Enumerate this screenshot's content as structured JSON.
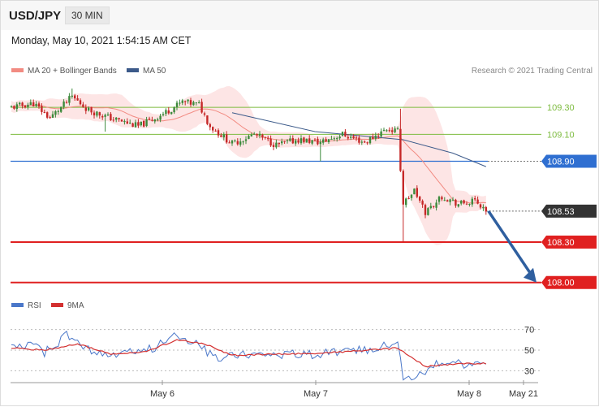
{
  "header": {
    "symbol": "USD/JPY",
    "timeframe": "30 MIN",
    "timestamp": "Monday, May 10, 2021 1:54:15 AM CET"
  },
  "legend": {
    "ma20_label": "MA 20 + Bollinger Bands",
    "ma50_label": "MA 50",
    "copyright": "Research © 2021 Trading Central",
    "rsi_label": "RSI",
    "rsi_ma_label": "9MA"
  },
  "colors": {
    "ma20": "#f28b82",
    "bands": "#fde0e0",
    "ma50": "#3c5a8a",
    "resistance": "#7dbb3f",
    "pivot": "#2f6fd1",
    "support": "#e02020",
    "current": "#333333",
    "up_candle": "#3c8a3c",
    "down_candle": "#c62828",
    "rsi": "#4a77c9",
    "rsi_ma": "#d32f2f",
    "arrow": "#2f5f9f"
  },
  "chart_data": [
    {
      "type": "candlestick",
      "title": "USD/JPY",
      "timeframe": "30 MIN",
      "x_ticks": [
        "May 6",
        "May 7",
        "May 8",
        "May 21"
      ],
      "ylim": [
        107.95,
        109.5
      ],
      "levels": [
        {
          "label": "109.30",
          "value": 109.3,
          "kind": "resistance"
        },
        {
          "label": "109.10",
          "value": 109.1,
          "kind": "resistance"
        },
        {
          "label": "108.90",
          "value": 108.9,
          "kind": "pivot"
        },
        {
          "label": "108.53",
          "value": 108.53,
          "kind": "current"
        },
        {
          "label": "108.30",
          "value": 108.3,
          "kind": "support"
        },
        {
          "label": "108.00",
          "value": 108.0,
          "kind": "support"
        }
      ],
      "anchors": [
        [
          0,
          109.3
        ],
        [
          8,
          109.33
        ],
        [
          14,
          109.22
        ],
        [
          22,
          109.38
        ],
        [
          28,
          109.28
        ],
        [
          36,
          109.22
        ],
        [
          46,
          109.16
        ],
        [
          54,
          109.24
        ],
        [
          62,
          109.34
        ],
        [
          68,
          109.32
        ],
        [
          72,
          109.16
        ],
        [
          80,
          109.03
        ],
        [
          88,
          109.1
        ],
        [
          96,
          109.02
        ],
        [
          104,
          109.06
        ],
        [
          112,
          109.04
        ],
        [
          120,
          109.1
        ],
        [
          128,
          109.04
        ],
        [
          136,
          109.14
        ],
        [
          140,
          109.12
        ],
        [
          142,
          108.58
        ],
        [
          146,
          108.68
        ],
        [
          150,
          108.52
        ],
        [
          156,
          108.64
        ],
        [
          162,
          108.58
        ],
        [
          168,
          108.6
        ],
        [
          172,
          108.54
        ]
      ],
      "spike_lows": [
        [
          34,
          109.12
        ],
        [
          112,
          108.9
        ],
        [
          142,
          108.3
        ]
      ],
      "spike_highs": [
        [
          22,
          109.44
        ],
        [
          141,
          109.29
        ]
      ],
      "ma50": [
        [
          80,
          109.26
        ],
        [
          110,
          109.12
        ],
        [
          142,
          109.06
        ],
        [
          160,
          108.96
        ],
        [
          172,
          108.86
        ]
      ],
      "projection": {
        "from": 108.53,
        "to": 108.0
      }
    },
    {
      "type": "line",
      "title": "RSI",
      "series": [
        {
          "name": "RSI"
        },
        {
          "name": "9MA"
        }
      ],
      "y_ticks": [
        70,
        50,
        30
      ],
      "ylim": [
        20,
        80
      ],
      "rsi_anchors": [
        [
          0,
          52
        ],
        [
          6,
          57
        ],
        [
          12,
          48
        ],
        [
          20,
          64
        ],
        [
          28,
          50
        ],
        [
          36,
          44
        ],
        [
          44,
          48
        ],
        [
          52,
          53
        ],
        [
          60,
          66
        ],
        [
          66,
          58
        ],
        [
          74,
          42
        ],
        [
          82,
          46
        ],
        [
          90,
          47
        ],
        [
          100,
          46
        ],
        [
          110,
          46
        ],
        [
          120,
          48
        ],
        [
          132,
          52
        ],
        [
          140,
          60
        ],
        [
          142,
          22
        ],
        [
          148,
          27
        ],
        [
          156,
          39
        ],
        [
          164,
          36
        ],
        [
          172,
          38
        ]
      ],
      "rsi_ma_anchors": [
        [
          0,
          52
        ],
        [
          12,
          50
        ],
        [
          24,
          56
        ],
        [
          36,
          46
        ],
        [
          48,
          48
        ],
        [
          60,
          60
        ],
        [
          70,
          56
        ],
        [
          80,
          45
        ],
        [
          96,
          46
        ],
        [
          112,
          47
        ],
        [
          130,
          50
        ],
        [
          140,
          52
        ],
        [
          150,
          34
        ],
        [
          164,
          37
        ],
        [
          172,
          37
        ]
      ]
    }
  ]
}
